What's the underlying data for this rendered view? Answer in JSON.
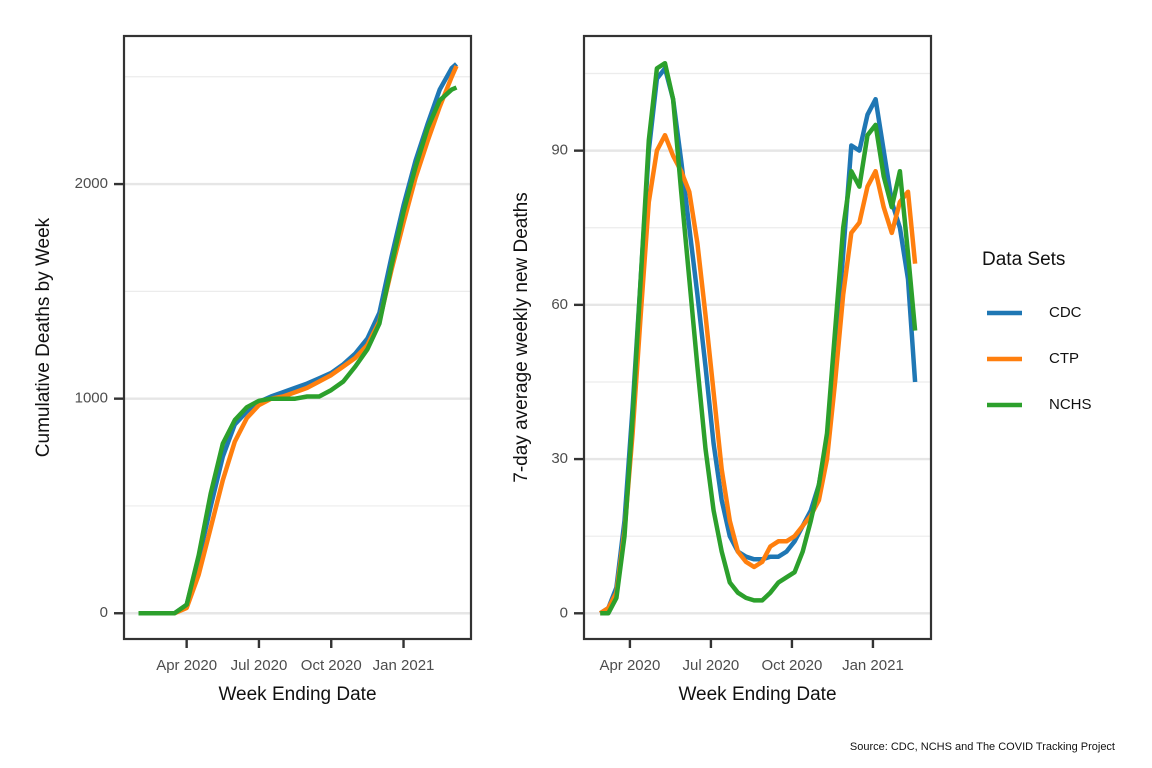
{
  "chart_data": [
    {
      "type": "line",
      "x_label": "Week Ending Date",
      "y_label": "Cumulative Deaths by Week",
      "x": [
        1.0,
        1.5,
        2.0,
        2.5,
        3.0,
        3.5,
        4.0,
        4.5,
        5.0,
        5.5,
        6.0,
        6.5,
        7.0,
        7.5,
        8.0,
        8.5,
        9.0,
        9.5,
        10.0,
        10.5,
        11.0,
        11.5,
        12.0,
        12.5,
        13.0,
        13.5,
        14.0,
        14.2
      ],
      "series": [
        {
          "name": "CDC",
          "color": "#1f77b4",
          "values": [
            0,
            0,
            0,
            0,
            40,
            250,
            500,
            730,
            880,
            940,
            985,
            1010,
            1030,
            1050,
            1070,
            1095,
            1120,
            1160,
            1210,
            1280,
            1400,
            1660,
            1900,
            2110,
            2280,
            2440,
            2540,
            2560
          ]
        },
        {
          "name": "CTP",
          "color": "#ff7f0e",
          "values": [
            0,
            0,
            0,
            0,
            25,
            180,
            400,
            620,
            800,
            910,
            970,
            1000,
            1010,
            1030,
            1050,
            1080,
            1110,
            1150,
            1190,
            1250,
            1360,
            1600,
            1820,
            2030,
            2200,
            2360,
            2500,
            2550
          ]
        },
        {
          "name": "NCHS",
          "color": "#2ca02c",
          "values": [
            0,
            0,
            0,
            0,
            40,
            270,
            560,
            790,
            900,
            960,
            990,
            1000,
            1000,
            1000,
            1010,
            1010,
            1040,
            1080,
            1150,
            1230,
            1350,
            1620,
            1870,
            2080,
            2260,
            2390,
            2440,
            2450
          ]
        }
      ],
      "xlim": [
        0.4,
        14.8
      ],
      "xticks": [
        {
          "value": 3,
          "label": "Apr 2020"
        },
        {
          "value": 6,
          "label": "Jul 2020"
        },
        {
          "value": 9,
          "label": "Oct 2020"
        },
        {
          "value": 12,
          "label": "Jan 2021"
        }
      ],
      "ylim": [
        -120,
        2690
      ],
      "yticks": [
        0,
        1000,
        2000
      ],
      "yticks_minor": [
        500,
        1500,
        2500
      ],
      "grid": true
    },
    {
      "type": "line",
      "x_label": "Week Ending Date",
      "y_label": "7-day average weekly new Deaths",
      "x": [
        1.9,
        2.2,
        2.5,
        2.8,
        3.1,
        3.4,
        3.7,
        4.0,
        4.3,
        4.6,
        4.9,
        5.2,
        5.5,
        5.8,
        6.1,
        6.4,
        6.7,
        7.0,
        7.3,
        7.6,
        7.9,
        8.2,
        8.5,
        8.8,
        9.1,
        9.4,
        9.7,
        10.0,
        10.3,
        10.6,
        10.9,
        11.2,
        11.5,
        11.8,
        12.1,
        12.4,
        12.7,
        13.0,
        13.3,
        13.56
      ],
      "series": [
        {
          "name": "CDC",
          "color": "#1f77b4",
          "values": [
            0,
            1,
            5,
            18,
            40,
            65,
            90,
            104,
            106,
            100,
            88,
            75,
            62,
            48,
            33,
            22,
            15,
            12,
            11,
            10.5,
            10.5,
            11,
            11,
            12,
            14,
            17,
            20,
            25,
            34,
            50,
            70,
            91,
            90,
            97,
            100,
            90,
            80,
            75,
            65,
            45
          ]
        },
        {
          "name": "CTP",
          "color": "#ff7f0e",
          "values": [
            0,
            1,
            4,
            16,
            35,
            58,
            80,
            90,
            93,
            89,
            86,
            82,
            72,
            58,
            43,
            28,
            18,
            12,
            10,
            9,
            10,
            13,
            14,
            14,
            15,
            17,
            19,
            22,
            30,
            45,
            62,
            74,
            76,
            83,
            86,
            79,
            74,
            80,
            82,
            68
          ]
        },
        {
          "name": "NCHS",
          "color": "#2ca02c",
          "values": [
            0,
            0,
            3,
            15,
            38,
            65,
            92,
            106,
            107,
            100,
            82,
            65,
            48,
            32,
            20,
            12,
            6,
            4,
            3,
            2.5,
            2.5,
            4,
            6,
            7,
            8,
            12,
            18,
            25,
            35,
            55,
            75,
            86,
            83,
            93,
            95,
            85,
            79,
            86,
            70,
            55
          ]
        }
      ],
      "xlim": [
        1.3,
        14.15
      ],
      "xticks": [
        {
          "value": 3,
          "label": "Apr 2020"
        },
        {
          "value": 6,
          "label": "Jul 2020"
        },
        {
          "value": 9,
          "label": "Oct 2020"
        },
        {
          "value": 12,
          "label": "Jan 2021"
        }
      ],
      "ylim": [
        -5,
        112.3
      ],
      "yticks": [
        0,
        30,
        60,
        90
      ],
      "yticks_minor": [
        15,
        45,
        75,
        105
      ],
      "grid": true
    }
  ],
  "legend_title": "Data Sets",
  "legend_position": "right",
  "source": "Source: CDC, NCHS and The COVID Tracking Project"
}
